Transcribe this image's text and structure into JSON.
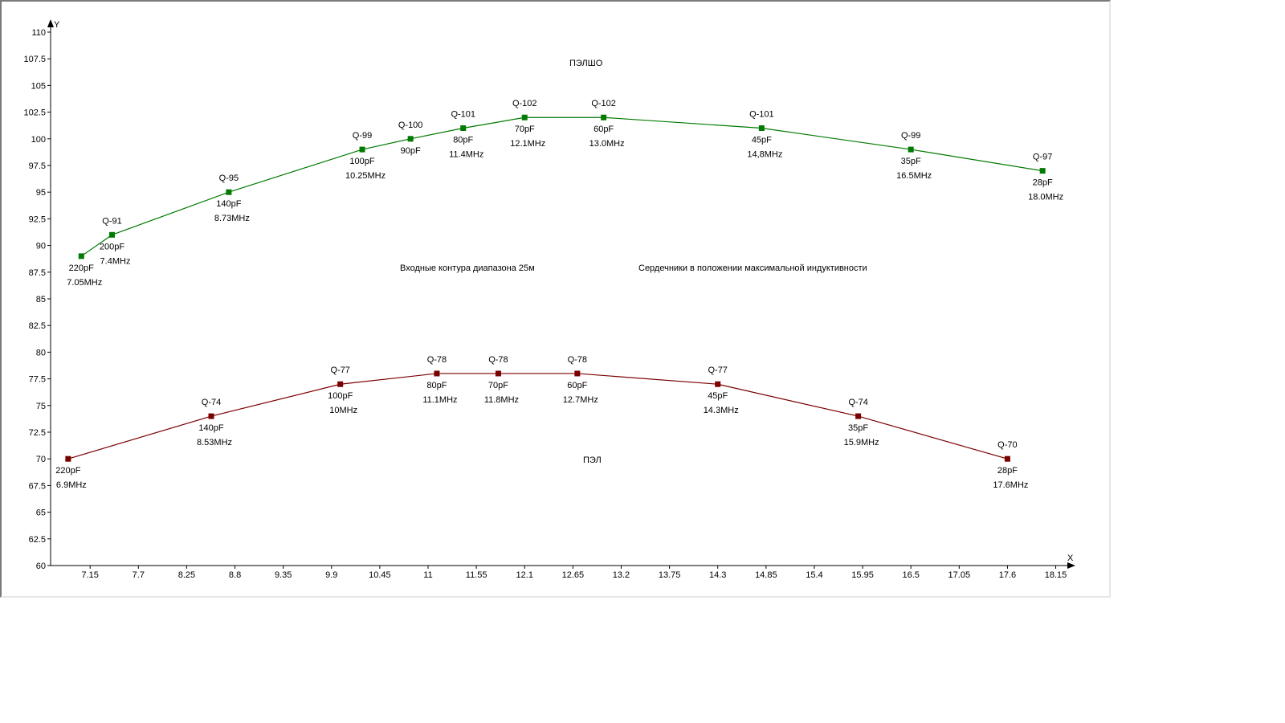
{
  "chart_data": {
    "type": "line",
    "title": "Входные контура диапазона 25м",
    "subtitle": "Сердечники в положении максимальной индуктивности",
    "xlabel": "X",
    "ylabel": "Y",
    "xlim": [
      6.7,
      18.2
    ],
    "ylim": [
      60,
      110
    ],
    "x_ticks": [
      "7.15",
      "7.7",
      "8.25",
      "8.8",
      "9.35",
      "9.9",
      "10.45",
      "11",
      "11.55",
      "12.1",
      "12.65",
      "13.2",
      "13.75",
      "14.3",
      "14.85",
      "15.4",
      "15.95",
      "16.5",
      "17.05",
      "17.6",
      "18.15"
    ],
    "y_ticks": [
      "60",
      "62.5",
      "65",
      "67.5",
      "70",
      "72.5",
      "75",
      "77.5",
      "80",
      "82.5",
      "85",
      "87.5",
      "90",
      "92.5",
      "95",
      "97.5",
      "100",
      "102.5",
      "105",
      "107.5",
      "110"
    ],
    "grid": false,
    "series": [
      {
        "name": "ПЭЛШО",
        "color": "#007a00",
        "points": [
          {
            "x": 7.05,
            "y": 89,
            "q": "",
            "cap": "220pF",
            "freq": "7.05MHz"
          },
          {
            "x": 7.4,
            "y": 91,
            "q": "Q-91",
            "cap": "200pF",
            "freq": "7.4MHz"
          },
          {
            "x": 8.73,
            "y": 95,
            "q": "Q-95",
            "cap": "140pF",
            "freq": "8.73MHz"
          },
          {
            "x": 10.25,
            "y": 99,
            "q": "Q-99",
            "cap": "100pF",
            "freq": "10.25MHz"
          },
          {
            "x": 10.8,
            "y": 100,
            "q": "Q-100",
            "cap": "90pF",
            "freq": ""
          },
          {
            "x": 11.4,
            "y": 101,
            "q": "Q-101",
            "cap": "80pF",
            "freq": "11.4MHz"
          },
          {
            "x": 12.1,
            "y": 102,
            "q": "Q-102",
            "cap": "70pF",
            "freq": "12.1MHz"
          },
          {
            "x": 13.0,
            "y": 102,
            "q": "Q-102",
            "cap": "60pF",
            "freq": "13.0MHz"
          },
          {
            "x": 14.8,
            "y": 101,
            "q": "Q-101",
            "cap": "45pF",
            "freq": "14,8MHz"
          },
          {
            "x": 16.5,
            "y": 99,
            "q": "Q-99",
            "cap": "35pF",
            "freq": "16.5MHz"
          },
          {
            "x": 18.0,
            "y": 97,
            "q": "Q-97",
            "cap": "28pF",
            "freq": "18.0MHz"
          }
        ]
      },
      {
        "name": "ПЭЛ",
        "color": "#7a0000",
        "points": [
          {
            "x": 6.9,
            "y": 70,
            "q": "",
            "cap": "220pF",
            "freq": "6.9MHz"
          },
          {
            "x": 8.53,
            "y": 74,
            "q": "Q-74",
            "cap": "140pF",
            "freq": "8.53MHz"
          },
          {
            "x": 10.0,
            "y": 77,
            "q": "Q-77",
            "cap": "100pF",
            "freq": "10MHz"
          },
          {
            "x": 11.1,
            "y": 78,
            "q": "Q-78",
            "cap": "80pF",
            "freq": "11.1MHz"
          },
          {
            "x": 11.8,
            "y": 78,
            "q": "Q-78",
            "cap": "70pF",
            "freq": "11.8MHz"
          },
          {
            "x": 12.7,
            "y": 78,
            "q": "Q-78",
            "cap": "60pF",
            "freq": "12.7MHz"
          },
          {
            "x": 14.3,
            "y": 77,
            "q": "Q-77",
            "cap": "45pF",
            "freq": "14.3MHz"
          },
          {
            "x": 15.9,
            "y": 74,
            "q": "Q-74",
            "cap": "35pF",
            "freq": "15.9MHz"
          },
          {
            "x": 17.6,
            "y": 70,
            "q": "Q-70",
            "cap": "28pF",
            "freq": "17.6MHz"
          }
        ]
      }
    ]
  }
}
